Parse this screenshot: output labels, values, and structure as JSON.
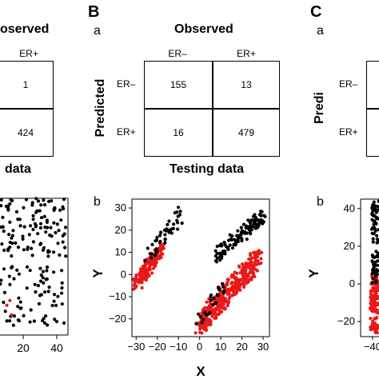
{
  "panels": {
    "A": {
      "observed_title_fragment": "oserved",
      "col_header": "ER+",
      "cells": [
        "1",
        "424"
      ],
      "caption_fragment": "data"
    },
    "B": {
      "letter": "B",
      "sub_a": "a",
      "sub_b": "b",
      "observed_title": "Observed",
      "predicted_title": "Predicted",
      "col_headers": [
        "ER–",
        "ER+"
      ],
      "row_headers": [
        "ER–",
        "ER+"
      ],
      "matrix": [
        [
          "155",
          "13"
        ],
        [
          "16",
          "479"
        ]
      ],
      "caption": "Testing data"
    },
    "C": {
      "letter": "C",
      "sub_a": "a",
      "sub_b": "b",
      "predicted_fragment": "Predi",
      "row_headers": [
        "ER–",
        "ER+"
      ],
      "y_axis_label": "Y"
    }
  },
  "colors": {
    "er_neg": "#000000",
    "er_pos": "#e8191a"
  },
  "chart_data": [
    {
      "type": "scatter",
      "panel": "A-b (cropped)",
      "xlabel": "",
      "ylabel": "",
      "xlim": [
        0,
        45
      ],
      "ylim": [
        -35,
        35
      ],
      "xtick_labels": [
        "20",
        "40"
      ],
      "series": [
        {
          "color": "#000000",
          "approx_points": 220
        },
        {
          "color": "#e8191a",
          "approx_points": 15
        }
      ]
    },
    {
      "type": "scatter",
      "panel": "B-b",
      "xlabel": "X",
      "ylabel": "Y",
      "xlim": [
        -32,
        33
      ],
      "ylim": [
        -28,
        34
      ],
      "xticks": [
        -30,
        -20,
        -10,
        0,
        10,
        20,
        30
      ],
      "yticks": [
        -20,
        -10,
        0,
        10,
        20,
        30
      ],
      "xtick_labels": [
        "−30",
        "−20",
        "−10",
        "0",
        "10",
        "20",
        "30"
      ],
      "ytick_labels": [
        "−20",
        "−10",
        "0",
        "10",
        "20",
        "30"
      ],
      "series": [
        {
          "color": "#000000",
          "clusters": [
            {
              "x_range": [
                -24,
                -8
              ],
              "y_range": [
                5,
                32
              ],
              "n": 45
            },
            {
              "x_range": [
                8,
                30
              ],
              "y_range": [
                5,
                30
              ],
              "n": 120
            },
            {
              "x_range": [
                0,
                12
              ],
              "y_range": [
                -25,
                0
              ],
              "n": 25
            }
          ]
        },
        {
          "color": "#e8191a",
          "clusters": [
            {
              "x_range": [
                -30,
                -18
              ],
              "y_range": [
                -8,
                15
              ],
              "n": 150
            },
            {
              "x_range": [
                0,
                28
              ],
              "y_range": [
                -27,
                12
              ],
              "n": 330
            }
          ]
        }
      ]
    },
    {
      "type": "scatter",
      "panel": "C-b (cropped)",
      "xlabel": "",
      "ylabel": "Y",
      "xlim": [
        -45,
        -30
      ],
      "ylim": [
        -28,
        45
      ],
      "yticks": [
        -20,
        0,
        20,
        40
      ],
      "ytick_labels": [
        "−20",
        "0",
        "20",
        "40"
      ],
      "xtick_labels": [
        "−40"
      ],
      "series": [
        {
          "color": "#000000",
          "approx_points": 90
        },
        {
          "color": "#e8191a",
          "approx_points": 140
        }
      ]
    }
  ]
}
